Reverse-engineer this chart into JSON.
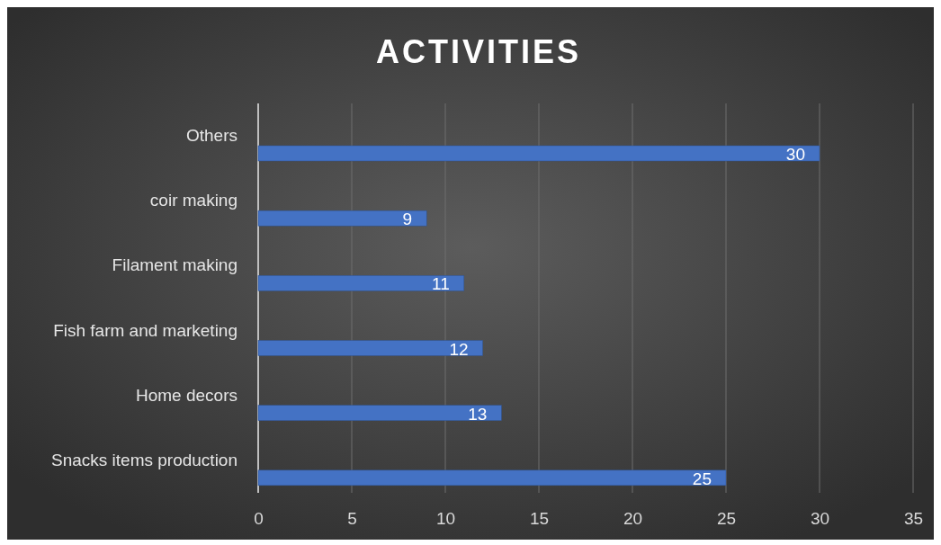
{
  "chart_data": {
    "type": "bar",
    "title": "ACTIVITIES",
    "orientation": "horizontal",
    "categories": [
      "Others",
      "coir making",
      "Filament making",
      "Fish farm and marketing",
      "Home decors",
      "Snacks items production"
    ],
    "values": [
      30,
      9,
      11,
      12,
      13,
      25
    ],
    "color": "#4472c4",
    "xlim": [
      0,
      35
    ],
    "xticks": [
      0,
      5,
      10,
      15,
      20,
      25,
      30,
      35
    ],
    "grid": "x",
    "data_labels": true
  }
}
